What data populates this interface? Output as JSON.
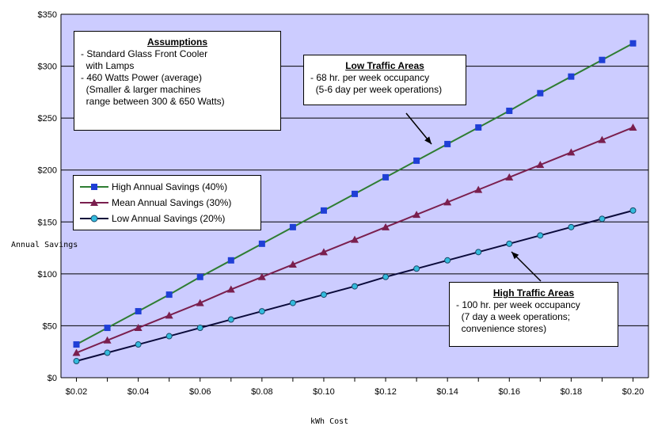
{
  "chart_data": {
    "type": "line",
    "title": "",
    "xlabel": "kWh Cost",
    "ylabel": "Annual Savings",
    "x": [
      0.02,
      0.03,
      0.04,
      0.05,
      0.06,
      0.07,
      0.08,
      0.09,
      0.1,
      0.11,
      0.12,
      0.13,
      0.14,
      0.15,
      0.16,
      0.17,
      0.18,
      0.19,
      0.2
    ],
    "x_tick_values": [
      0.02,
      0.04,
      0.06,
      0.08,
      0.1,
      0.12,
      0.14,
      0.16,
      0.18,
      0.2
    ],
    "x_tick_labels": [
      "$0.02",
      "$0.04",
      "$0.06",
      "$0.08",
      "$0.10",
      "$0.12",
      "$0.14",
      "$0.16",
      "$0.18",
      "$0.20"
    ],
    "xlim": [
      0.015,
      0.205
    ],
    "ylim": [
      0,
      350
    ],
    "y_tick_values": [
      0,
      50,
      100,
      150,
      200,
      250,
      300,
      350
    ],
    "y_tick_labels": [
      "$0",
      "$50",
      "$100",
      "$150",
      "$200",
      "$250",
      "$300",
      "$350"
    ],
    "grid": "horizontal",
    "plot_background": "#ccccff",
    "series": [
      {
        "name": "High Annual Savings (40%)",
        "color": "#2e7d32",
        "marker": "square",
        "marker_color": "#1f3fd6",
        "values": [
          32,
          48,
          64,
          80,
          97,
          113,
          129,
          145,
          161,
          177,
          193,
          209,
          225,
          241,
          257,
          274,
          290,
          306,
          322
        ]
      },
      {
        "name": "Mean Annual Savings (30%)",
        "color": "#7a1f4e",
        "marker": "triangle",
        "marker_color": "#7a1f4e",
        "values": [
          24,
          36,
          48,
          60,
          72,
          85,
          97,
          109,
          121,
          133,
          145,
          157,
          169,
          181,
          193,
          205,
          217,
          229,
          241
        ]
      },
      {
        "name": "Low Annual Savings (20%)",
        "color": "#0a0a3a",
        "marker": "circle",
        "marker_color": "#33bbdd",
        "values": [
          16,
          24,
          32,
          40,
          48,
          56,
          64,
          72,
          80,
          88,
          97,
          105,
          113,
          121,
          129,
          137,
          145,
          153,
          161
        ]
      }
    ]
  },
  "assumptions": {
    "title": "Assumptions",
    "lines": [
      "- Standard Glass Front Cooler",
      "  with Lamps",
      "- 460 Watts Power (average)",
      "  (Smaller & larger machines",
      "  range between 300 & 650 Watts)"
    ]
  },
  "low_traffic": {
    "title": "Low Traffic Areas",
    "lines": [
      "- 68 hr. per week occupancy",
      "  (5-6 day per week operations)"
    ]
  },
  "high_traffic": {
    "title": "High Traffic Areas",
    "lines": [
      "- 100 hr. per week occupancy",
      "  (7 day a week operations;",
      "  convenience stores)"
    ]
  }
}
